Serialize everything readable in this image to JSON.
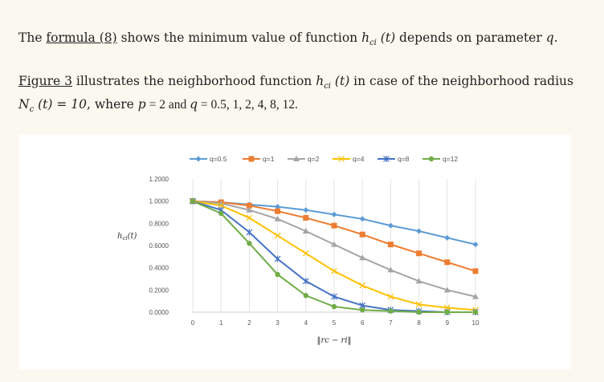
{
  "text": {
    "p1_a": "The ",
    "p1_link": "formula (8)",
    "p1_b": " shows the minimum value of function ",
    "p1_fn": "h",
    "p1_fn_sub": "ci",
    "p1_arg": " (t)",
    "p1_c": " depends on parameter ",
    "p1_q": "q",
    "p1_end": ".",
    "p2_link": "Figure 3",
    "p2_a": " illustrates the neighborhood function ",
    "p2_fn": "h",
    "p2_fn_sub": "ci",
    "p2_arg": " (t)",
    "p2_b": " in case of the neighborhood radius",
    "p2_N": "N",
    "p2_N_sub": "c",
    "p2_N_arg": " (t) = 10",
    "p2_c": ", where ",
    "p2_p": "p",
    "p2_p_val": " = 2 and ",
    "p2_q": "q",
    "p2_q_val": " = 0.5, 1, 2, 4, 8, 12."
  },
  "chart_data": {
    "type": "line",
    "xlabel": "‖r_c − r_i‖",
    "ylabel": "h_ci(t)",
    "x": [
      0,
      1,
      2,
      3,
      4,
      5,
      6,
      7,
      8,
      9,
      10
    ],
    "ylim": [
      0,
      1.2
    ],
    "yticks": [
      "0.0000",
      "0.2000",
      "0.4000",
      "0.6000",
      "0.8000",
      "1.0000",
      "1.2000"
    ],
    "grid": "vertical",
    "legend_position": "top",
    "series": [
      {
        "name": "q=0.5",
        "color": "#5b9bd5",
        "marker": "diamond",
        "values": [
          1.0,
          0.99,
          0.97,
          0.95,
          0.92,
          0.88,
          0.84,
          0.78,
          0.73,
          0.67,
          0.61
        ]
      },
      {
        "name": "q=1",
        "color": "#ed7d31",
        "marker": "square",
        "values": [
          1.0,
          0.99,
          0.96,
          0.91,
          0.85,
          0.78,
          0.7,
          0.61,
          0.53,
          0.45,
          0.37
        ]
      },
      {
        "name": "q=2",
        "color": "#a5a5a5",
        "marker": "triangle",
        "values": [
          1.0,
          0.98,
          0.92,
          0.84,
          0.73,
          0.61,
          0.49,
          0.38,
          0.28,
          0.2,
          0.14
        ]
      },
      {
        "name": "q=4",
        "color": "#ffc000",
        "marker": "x",
        "values": [
          1.0,
          0.96,
          0.85,
          0.69,
          0.53,
          0.37,
          0.24,
          0.14,
          0.07,
          0.04,
          0.02
        ]
      },
      {
        "name": "q=8",
        "color": "#4472c4",
        "marker": "star",
        "values": [
          1.0,
          0.92,
          0.72,
          0.48,
          0.28,
          0.14,
          0.06,
          0.02,
          0.01,
          0.0,
          0.0
        ]
      },
      {
        "name": "q=12",
        "color": "#70ad47",
        "marker": "circle",
        "values": [
          1.0,
          0.89,
          0.62,
          0.34,
          0.15,
          0.05,
          0.02,
          0.01,
          0.0,
          0.0,
          0.0
        ]
      }
    ]
  }
}
